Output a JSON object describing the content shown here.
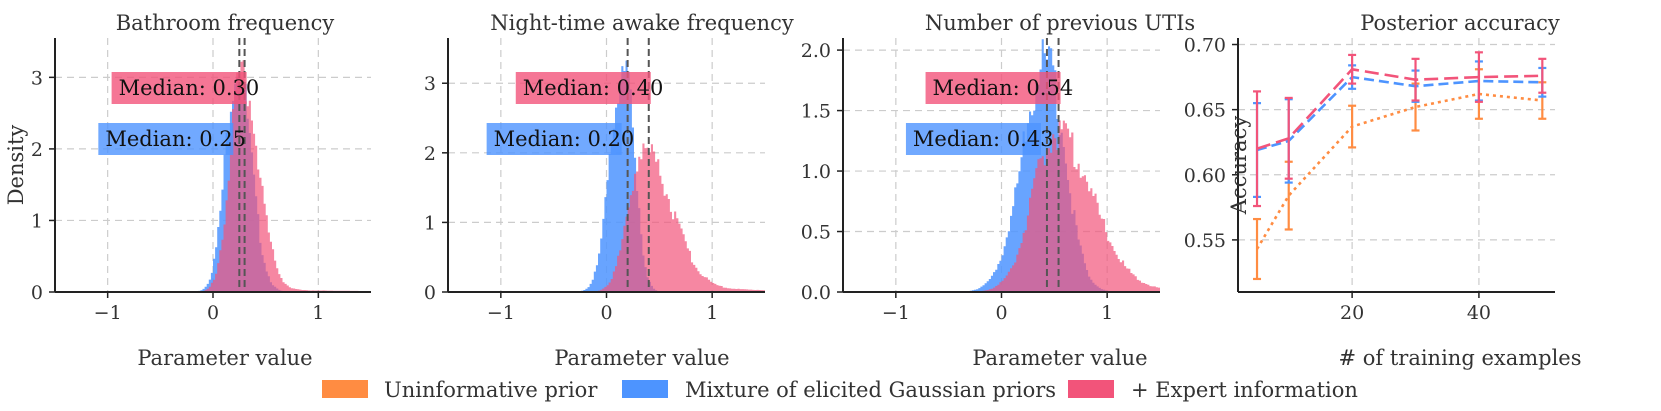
{
  "colors": {
    "uninformative": "#ff8c42",
    "elicited": "#4d94ff",
    "expert": "#f2547a",
    "median_line": "#555555"
  },
  "legend": {
    "items": [
      {
        "label": "Uninformative prior",
        "color": "#ff8c42"
      },
      {
        "label": "Mixture of elicited Gaussian priors",
        "color": "#4d94ff"
      },
      {
        "label": "+ Expert information",
        "color": "#f2547a"
      }
    ]
  },
  "chart_data": [
    {
      "type": "histogram",
      "title": "Bathroom frequency",
      "xlabel": "Parameter value",
      "ylabel": "Density",
      "xlim": [
        -1.5,
        1.5
      ],
      "ylim": [
        0,
        3.55
      ],
      "xticks": [
        "−1",
        "0",
        "1"
      ],
      "xtick_values": [
        -1,
        0,
        1
      ],
      "yticks": [
        "0",
        "1",
        "2",
        "3"
      ],
      "ytick_values": [
        0,
        1,
        2,
        3
      ],
      "grid": true,
      "series": [
        {
          "key": "elicited",
          "median": 0.25,
          "median_label": "Median: 0.25",
          "mu": 0.23,
          "sl": 0.11,
          "sr": 0.13,
          "peak": 3.2,
          "tail": 0.0
        },
        {
          "key": "expert",
          "median": 0.3,
          "median_label": "Median: 0.30",
          "mu": 0.27,
          "sl": 0.11,
          "sr": 0.16,
          "peak": 3.05,
          "tail": 0.05
        }
      ]
    },
    {
      "type": "histogram",
      "title": "Night-time awake frequency",
      "xlabel": "Parameter value",
      "ylabel": "",
      "xlim": [
        -1.5,
        1.5
      ],
      "ylim": [
        0,
        3.65
      ],
      "xticks": [
        "−1",
        "0",
        "1"
      ],
      "xtick_values": [
        -1,
        0,
        1
      ],
      "yticks": [
        "0",
        "1",
        "2",
        "3"
      ],
      "ytick_values": [
        0,
        1,
        2,
        3
      ],
      "grid": true,
      "series": [
        {
          "key": "elicited",
          "median": 0.2,
          "median_label": "Median: 0.20",
          "mu": 0.16,
          "sl": 0.12,
          "sr": 0.1,
          "peak": 3.35,
          "tail": 0.0
        },
        {
          "key": "expert",
          "median": 0.4,
          "median_label": "Median: 0.40",
          "mu": 0.35,
          "sl": 0.14,
          "sr": 0.26,
          "peak": 2.05,
          "tail": 0.1
        }
      ]
    },
    {
      "type": "histogram",
      "title": "Number of previous UTIs",
      "xlabel": "Parameter value",
      "ylabel": "",
      "xlim": [
        -1.5,
        1.5
      ],
      "ylim": [
        0,
        2.1
      ],
      "xticks": [
        "−1",
        "0",
        "1"
      ],
      "xtick_values": [
        -1,
        0,
        1
      ],
      "yticks": [
        "0.0",
        "0.5",
        "1.0",
        "1.5",
        "2.0"
      ],
      "ytick_values": [
        0,
        0.5,
        1.0,
        1.5,
        2.0
      ],
      "grid": true,
      "series": [
        {
          "key": "elicited",
          "median": 0.43,
          "median_label": "Median: 0.43",
          "mu": 0.42,
          "sl": 0.22,
          "sr": 0.18,
          "peak": 1.9,
          "tail": 0.0
        },
        {
          "key": "expert",
          "median": 0.54,
          "median_label": "Median: 0.54",
          "mu": 0.52,
          "sl": 0.22,
          "sr": 0.33,
          "peak": 1.33,
          "tail": 0.05
        }
      ]
    },
    {
      "type": "line",
      "title": "Posterior accuracy",
      "xlabel": "# of training examples",
      "ylabel": "Accuracy",
      "xlim": [
        2,
        52
      ],
      "ylim": [
        0.51,
        0.705
      ],
      "xticks": [
        "20",
        "40"
      ],
      "xtick_values": [
        20,
        40
      ],
      "yticks": [
        "0.55",
        "0.60",
        "0.65",
        "0.70"
      ],
      "ytick_values": [
        0.55,
        0.6,
        0.65,
        0.7
      ],
      "grid": true,
      "x": [
        5,
        10,
        20,
        30,
        40,
        50
      ],
      "series": [
        {
          "key": "uninformative",
          "values": [
            0.543,
            0.584,
            0.637,
            0.652,
            0.662,
            0.657
          ],
          "errors": [
            0.023,
            0.026,
            0.016,
            0.018,
            0.019,
            0.014
          ],
          "dash": "3,4"
        },
        {
          "key": "elicited",
          "values": [
            0.619,
            0.626,
            0.675,
            0.668,
            0.672,
            0.671
          ],
          "errors": [
            0.036,
            0.032,
            0.009,
            0.012,
            0.015,
            0.011
          ],
          "dash": "10,5"
        },
        {
          "key": "expert",
          "values": [
            0.62,
            0.628,
            0.681,
            0.673,
            0.675,
            0.676
          ],
          "errors": [
            0.044,
            0.031,
            0.011,
            0.016,
            0.019,
            0.013
          ],
          "dash": "14,6"
        }
      ]
    }
  ]
}
